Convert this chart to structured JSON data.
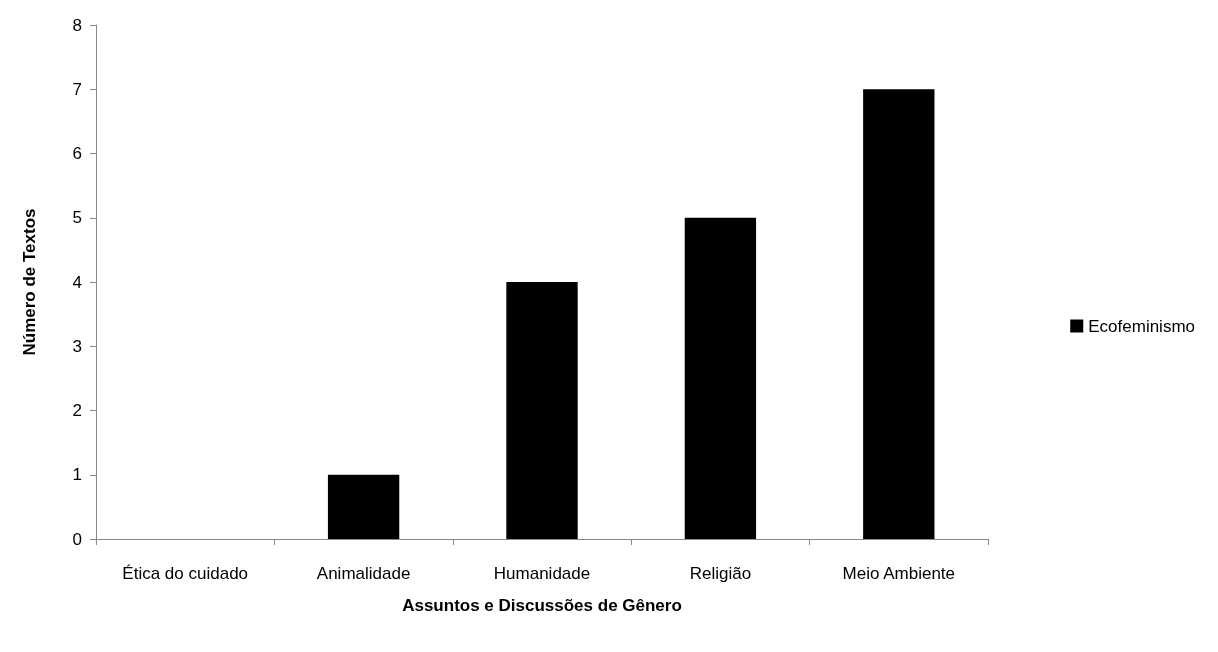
{
  "chart_data": {
    "type": "bar",
    "xlabel": "Assuntos e Discussões de Gênero",
    "ylabel": "Número de Textos",
    "categories": [
      "Ética do cuidado",
      "Animalidade",
      "Humanidade",
      "Religião",
      "Meio Ambiente"
    ],
    "series": [
      {
        "name": "Ecofeminismo",
        "color": "#000000",
        "values": [
          0,
          1,
          4,
          5,
          7
        ]
      }
    ],
    "ylim": [
      0,
      8
    ],
    "yticks": [
      0,
      1,
      2,
      3,
      4,
      5,
      6,
      7,
      8
    ],
    "grid": false,
    "legend": "right"
  }
}
